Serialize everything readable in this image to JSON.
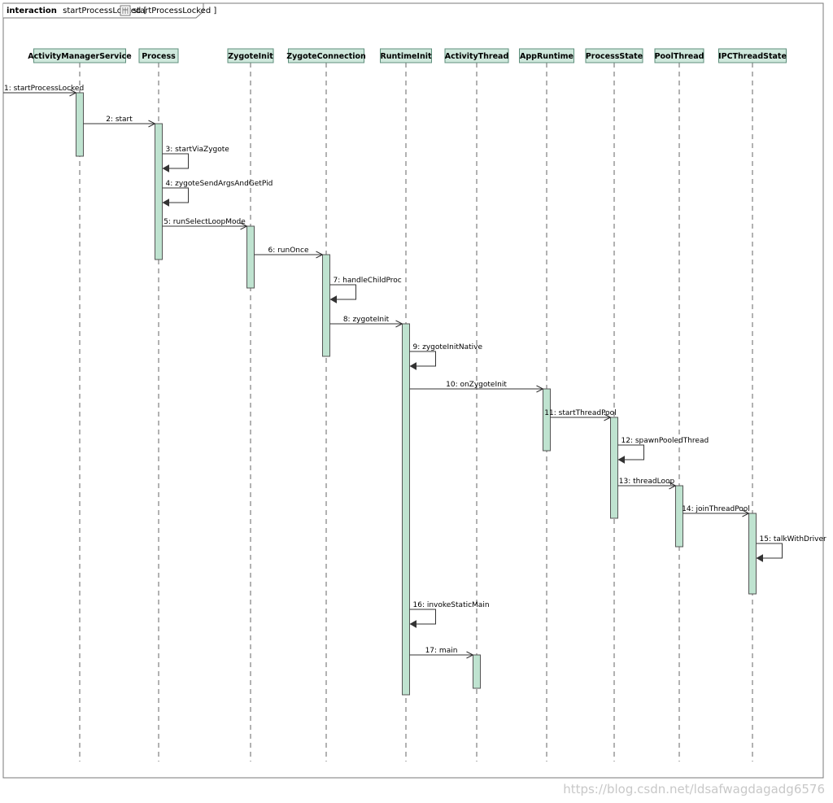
{
  "frame": {
    "keyword": "interaction",
    "name": "startProcessLocked",
    "ref_icon": "interaction-ref-icon",
    "ref_label": "startProcessLocked",
    "suffix": " ]"
  },
  "lifelines": [
    {
      "id": "ams",
      "label": "ActivityManagerService"
    },
    {
      "id": "process",
      "label": "Process"
    },
    {
      "id": "zygoteinit",
      "label": "ZygoteInit"
    },
    {
      "id": "zygoteconn",
      "label": "ZygoteConnection"
    },
    {
      "id": "runtimeinit",
      "label": "RuntimeInit"
    },
    {
      "id": "activitythread",
      "label": "ActivityThread"
    },
    {
      "id": "appruntime",
      "label": "AppRuntime"
    },
    {
      "id": "processstate",
      "label": "ProcessState"
    },
    {
      "id": "poolthread",
      "label": "PoolThread"
    },
    {
      "id": "ipcthreadstate",
      "label": "IPCThreadState"
    }
  ],
  "messages": [
    {
      "label": "1: startProcessLocked",
      "from": "found",
      "to": "ams"
    },
    {
      "label": "2: start",
      "from": "ams",
      "to": "process"
    },
    {
      "label": "3: startViaZygote",
      "from": "process",
      "to": "process"
    },
    {
      "label": "4: zygoteSendArgsAndGetPid",
      "from": "process",
      "to": "process"
    },
    {
      "label": "5: runSelectLoopMode",
      "from": "process",
      "to": "zygoteinit"
    },
    {
      "label": "6: runOnce",
      "from": "zygoteinit",
      "to": "zygoteconn"
    },
    {
      "label": "7: handleChildProc",
      "from": "zygoteconn",
      "to": "zygoteconn"
    },
    {
      "label": "8: zygoteInit",
      "from": "zygoteconn",
      "to": "runtimeinit"
    },
    {
      "label": "9: zygoteInitNative",
      "from": "runtimeinit",
      "to": "runtimeinit"
    },
    {
      "label": "10: onZygoteInit",
      "from": "runtimeinit",
      "to": "appruntime"
    },
    {
      "label": "11: startThreadPool",
      "from": "appruntime",
      "to": "processstate"
    },
    {
      "label": "12: spawnPooledThread",
      "from": "processstate",
      "to": "processstate"
    },
    {
      "label": "13: threadLoop",
      "from": "processstate",
      "to": "poolthread"
    },
    {
      "label": "14: joinThreadPool",
      "from": "poolthread",
      "to": "ipcthreadstate"
    },
    {
      "label": "15: talkWithDriver",
      "from": "ipcthreadstate",
      "to": "ipcthreadstate"
    },
    {
      "label": "16: invokeStaticMain",
      "from": "runtimeinit",
      "to": "runtimeinit"
    },
    {
      "label": "17: main",
      "from": "runtimeinit",
      "to": "activitythread"
    }
  ],
  "watermark": "https://blog.csdn.net/ldsafwagdagadg6576",
  "colors": {
    "lifeline_fill": "#cfe8dc",
    "activation_fill": "#bfe3d0",
    "frame_border": "#7a7a7a"
  }
}
